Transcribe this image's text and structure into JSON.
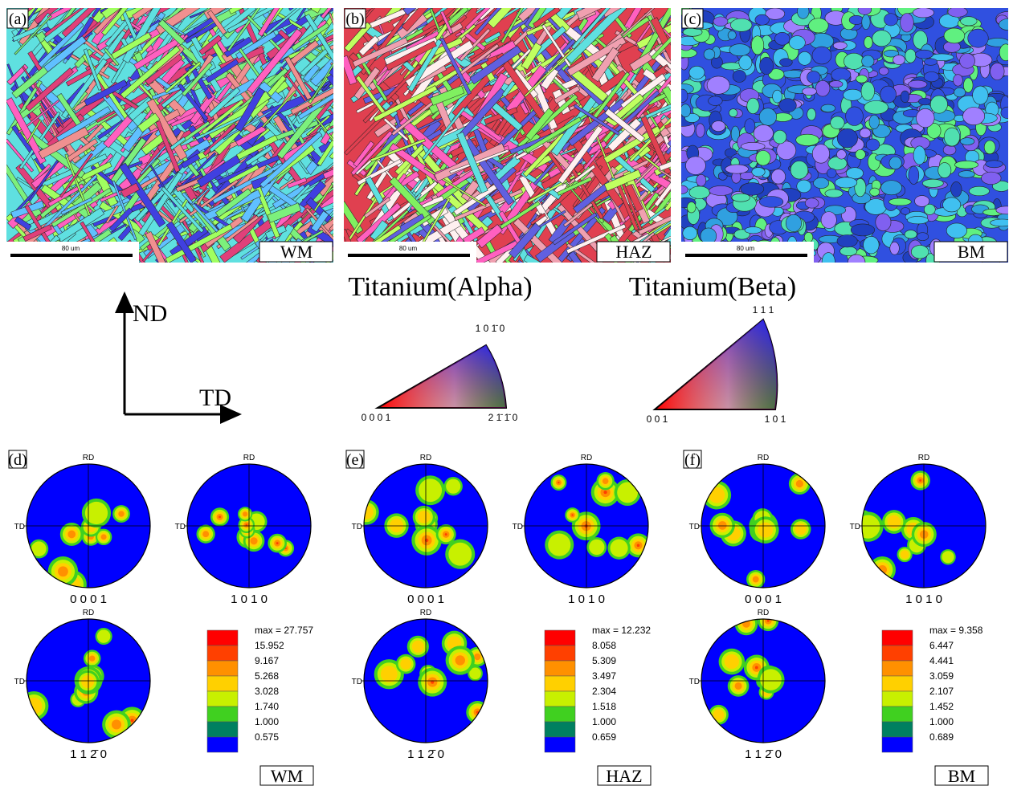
{
  "panels": [
    {
      "label": "(a)",
      "scale": "80 um",
      "tag": "WM"
    },
    {
      "label": "(b)",
      "scale": "80 um",
      "tag": "HAZ"
    },
    {
      "label": "(c)",
      "scale": "80 um",
      "tag": "BM"
    }
  ],
  "axes": {
    "vertical": "ND",
    "horizontal": "TD"
  },
  "ipf": [
    {
      "title": "Titanium(Alpha)",
      "top": "1 0 1̄ 0",
      "left": "0 0 0 1",
      "right": "2 1̄ 1̄ 0"
    },
    {
      "title": "Titanium(Beta)",
      "top": "1 1 1",
      "left": "0 0 1",
      "right": "1 0 1"
    }
  ],
  "pole_groups": [
    {
      "label": "(d)",
      "tag": "WM",
      "figures": [
        {
          "rd": "RD",
          "td": "TD",
          "plane": "0 0 0 1"
        },
        {
          "rd": "RD",
          "td": "TD",
          "plane": "1 0 1 0"
        },
        {
          "rd": "RD",
          "td": "TD",
          "plane": "1 1 2̄ 0"
        }
      ],
      "legend": {
        "max": "max = 27.757",
        "levels": [
          "15.952",
          "9.167",
          "5.268",
          "3.028",
          "1.740",
          "1.000",
          "0.575"
        ]
      }
    },
    {
      "label": "(e)",
      "tag": "HAZ",
      "figures": [
        {
          "rd": "RD",
          "td": "TD",
          "plane": "0 0 0 1"
        },
        {
          "rd": "RD",
          "td": "TD",
          "plane": "1 0 1 0"
        },
        {
          "rd": "RD",
          "td": "TD",
          "plane": "1 1 2̄ 0"
        }
      ],
      "legend": {
        "max": "max = 12.232",
        "levels": [
          "8.058",
          "5.309",
          "3.497",
          "2.304",
          "1.518",
          "1.000",
          "0.659"
        ]
      }
    },
    {
      "label": "(f)",
      "tag": "BM",
      "figures": [
        {
          "rd": "RD",
          "td": "TD",
          "plane": "0 0 0 1"
        },
        {
          "rd": "RD",
          "td": "TD",
          "plane": "1 0 1 0"
        },
        {
          "rd": "RD",
          "td": "TD",
          "plane": "1 1 2̄ 0"
        }
      ],
      "legend": {
        "max": "max = 9.358",
        "levels": [
          "6.447",
          "4.441",
          "3.059",
          "2.107",
          "1.452",
          "1.000",
          "0.689"
        ]
      }
    }
  ]
}
